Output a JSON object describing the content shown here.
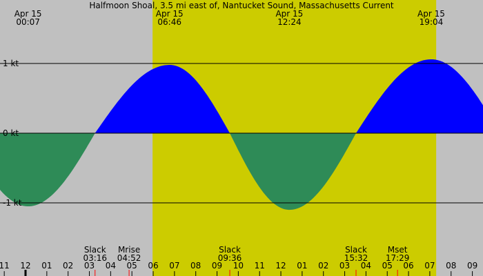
{
  "chart_data": {
    "type": "area",
    "title": "Halfmoon Shoal, 3.5 mi east of, Nantucket Sound, Massachusetts Current",
    "ylabel_unit": "kt",
    "y_ticks": [
      {
        "value": 1,
        "label": "1 kt"
      },
      {
        "value": 0,
        "label": "0 kt"
      },
      {
        "value": -1,
        "label": "-1 kt"
      }
    ],
    "ylim": [
      -1.9,
      1.9
    ],
    "xlim_hours": [
      -1.2,
      21.5
    ],
    "daylight_hours": [
      5.97,
      19.3
    ],
    "x_hour_labels": [
      "11",
      "12",
      "01",
      "02",
      "03",
      "04",
      "05",
      "06",
      "07",
      "08",
      "09",
      "10",
      "11",
      "12",
      "01",
      "02",
      "03",
      "04",
      "05",
      "06",
      "07",
      "08",
      "09"
    ],
    "x_hour_start": -1,
    "top_labels": [
      {
        "date": "Apr 15",
        "time": "00:07",
        "hour": 0.117
      },
      {
        "date": "Apr 15",
        "time": "06:46",
        "hour": 6.767
      },
      {
        "date": "Apr 15",
        "time": "12:24",
        "hour": 12.4
      },
      {
        "date": "Apr 15",
        "time": "19:04",
        "hour": 19.067
      }
    ],
    "events": [
      {
        "name": "Slack",
        "time": "03:16",
        "hour": 3.267
      },
      {
        "name": "Mrise",
        "time": "04:52",
        "hour": 4.867
      },
      {
        "name": "Slack",
        "time": "09:36",
        "hour": 9.6
      },
      {
        "name": "Slack",
        "time": "15:32",
        "hour": 15.533
      },
      {
        "name": "Mset",
        "time": "17:29",
        "hour": 17.483
      }
    ],
    "current_points": [
      {
        "hour": -2.9,
        "kt": 0
      },
      {
        "hour": 0.117,
        "kt": -1.05
      },
      {
        "hour": 3.267,
        "kt": 0
      },
      {
        "hour": 6.767,
        "kt": 0.98
      },
      {
        "hour": 9.6,
        "kt": 0
      },
      {
        "hour": 12.4,
        "kt": -1.1
      },
      {
        "hour": 15.533,
        "kt": 0
      },
      {
        "hour": 19.067,
        "kt": 1.06
      },
      {
        "hour": 22.3,
        "kt": 0
      }
    ],
    "colors": {
      "background": "#c0c0c0",
      "daylight": "#cccc00",
      "flood": "#0000ff",
      "ebb": "#2e8b57",
      "event_tick": "#ff0000"
    }
  }
}
